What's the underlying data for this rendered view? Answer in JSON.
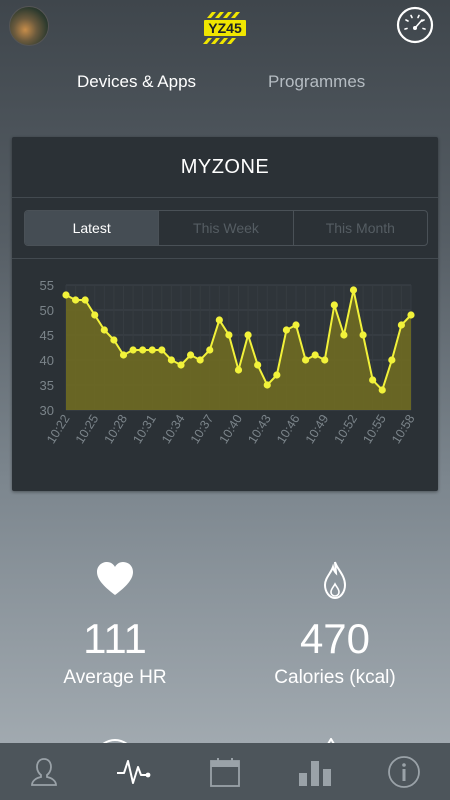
{
  "header": {
    "logo_text": "YZ45",
    "avatar": "avatar",
    "gauge_icon": "gauge-icon"
  },
  "tabs": [
    {
      "label": "Devices & Apps",
      "active": true
    },
    {
      "label": "Programmes",
      "active": false
    }
  ],
  "card": {
    "title": "MYZONE",
    "segments": [
      {
        "label": "Latest",
        "active": true
      },
      {
        "label": "This Week",
        "active": false
      },
      {
        "label": "This Month",
        "active": false
      }
    ]
  },
  "chart_data": {
    "type": "area",
    "x": [
      "10:22",
      "10:23",
      "10:24",
      "10:25",
      "10:26",
      "10:27",
      "10:28",
      "10:29",
      "10:30",
      "10:31",
      "10:32",
      "10:33",
      "10:34",
      "10:35",
      "10:36",
      "10:37",
      "10:38",
      "10:39",
      "10:40",
      "10:41",
      "10:42",
      "10:43",
      "10:44",
      "10:45",
      "10:46",
      "10:47",
      "10:48",
      "10:49",
      "10:50",
      "10:51",
      "10:52",
      "10:53",
      "10:54",
      "10:55",
      "10:56",
      "10:57",
      "10:58"
    ],
    "y": [
      53,
      52,
      52,
      49,
      46,
      44,
      41,
      42,
      42,
      42,
      42,
      40,
      39,
      41,
      40,
      42,
      48,
      45,
      38,
      45,
      39,
      35,
      37,
      46,
      47,
      40,
      41,
      40,
      51,
      45,
      54,
      45,
      36,
      34,
      40,
      47,
      49
    ],
    "xticks": [
      "10:22",
      "10:25",
      "10:28",
      "10:31",
      "10:34",
      "10:37",
      "10:40",
      "10:43",
      "10:46",
      "10:49",
      "10:52",
      "10:55",
      "10:58"
    ],
    "yticks": [
      30,
      35,
      40,
      45,
      50,
      55
    ],
    "ylim": [
      30,
      55
    ],
    "grid": true,
    "line_color": "#f2f23a",
    "fill_color": "#6f6a22"
  },
  "stats": {
    "hr": {
      "value": "111",
      "label": "Average HR",
      "icon": "heart-icon"
    },
    "calories": {
      "value": "470",
      "label": "Calories (kcal)",
      "icon": "flame-icon"
    }
  },
  "bottom_nav": [
    {
      "name": "profile",
      "icon": "profile-icon",
      "active": false
    },
    {
      "name": "activity",
      "icon": "heartbeat-icon",
      "active": true
    },
    {
      "name": "calendar",
      "icon": "calendar-icon",
      "active": false
    },
    {
      "name": "stats",
      "icon": "bar-chart-icon",
      "active": false
    },
    {
      "name": "info",
      "icon": "info-icon",
      "active": false
    }
  ]
}
